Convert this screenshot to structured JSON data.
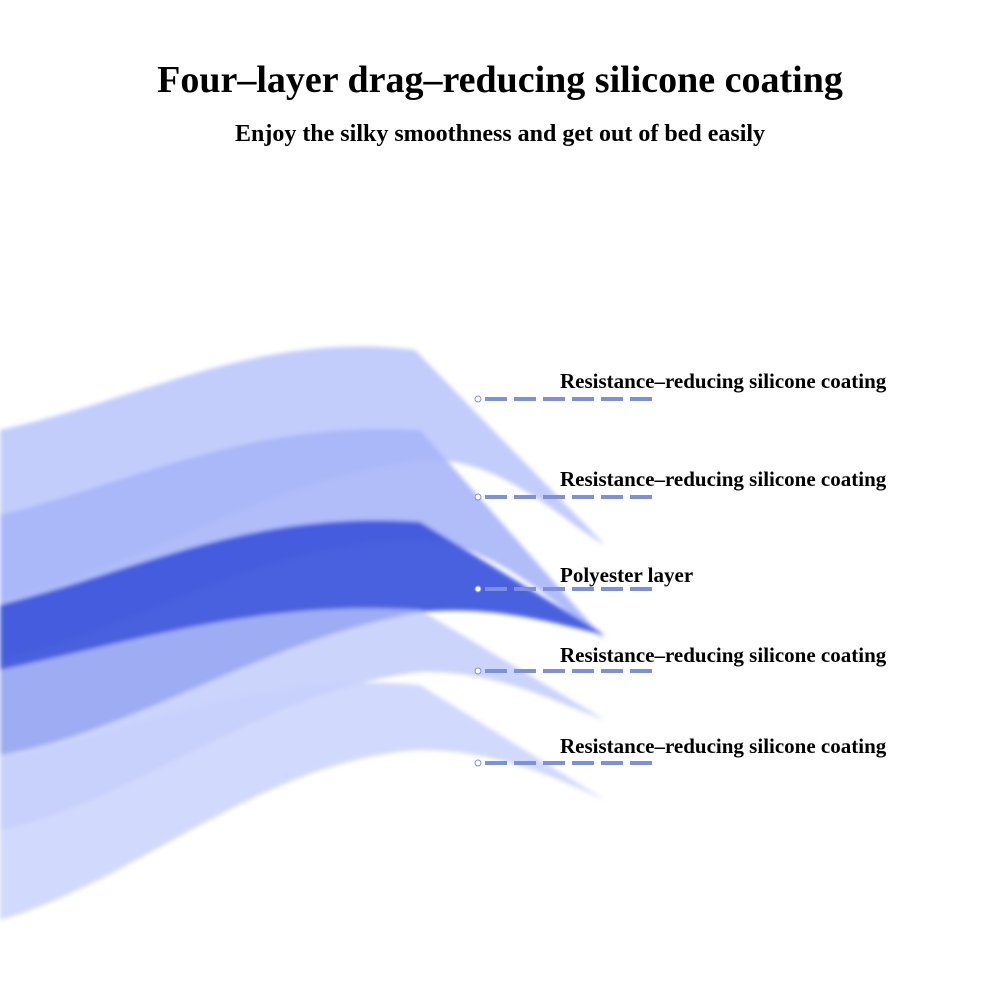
{
  "header": {
    "title": "Four–layer drag–reducing silicone coating",
    "subtitle": "Enjoy the silky smoothness and get out of bed easily"
  },
  "layers": [
    "Resistance–reducing silicone coating",
    "Resistance–reducing silicone coating",
    "Polyester layer",
    "Resistance–reducing silicone coating",
    "Resistance–reducing silicone coating"
  ]
}
